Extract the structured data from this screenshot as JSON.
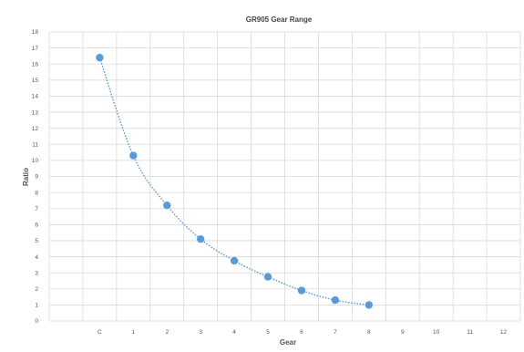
{
  "chart_data": {
    "type": "line",
    "title": "GR905 Gear Range",
    "xlabel": "Gear",
    "ylabel": "Ratio",
    "x_categories": [
      "",
      "C",
      "1",
      "2",
      "3",
      "4",
      "5",
      "6",
      "7",
      "8",
      "9",
      "10",
      "11",
      "12"
    ],
    "x": [
      "C",
      "1",
      "2",
      "3",
      "4",
      "5",
      "6",
      "7",
      "8"
    ],
    "series": [
      {
        "values": [
          16.4,
          10.3,
          7.2,
          5.1,
          3.75,
          2.75,
          1.9,
          1.3,
          1.0
        ]
      }
    ],
    "ylim": [
      0,
      18
    ],
    "yticks": [
      0,
      1,
      2,
      3,
      4,
      5,
      6,
      7,
      8,
      9,
      10,
      11,
      12,
      13,
      14,
      15,
      16,
      17,
      18
    ],
    "grid": true,
    "line_style": "dotted",
    "colors": {
      "series": "#5b9bd5",
      "grid": "#d9d9d9",
      "text": "#555555"
    }
  }
}
